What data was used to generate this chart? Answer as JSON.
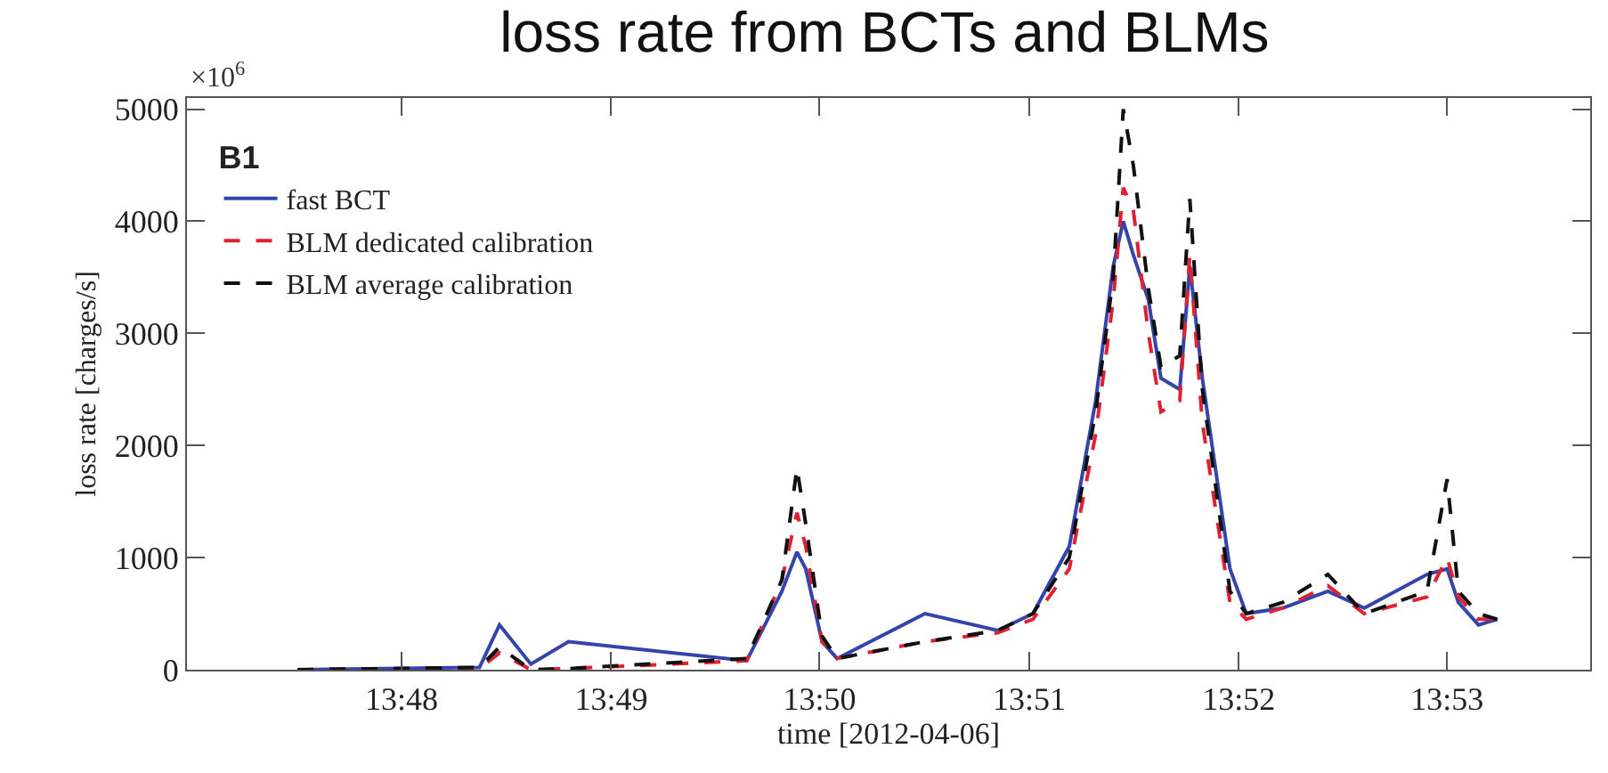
{
  "chart_data": {
    "type": "line",
    "title": "loss rate from BCTs and BLMs",
    "xlabel": "time [2012-04-06]",
    "ylabel": "loss rate [charges/s]",
    "legend_title": "B1",
    "annotations": [
      "×10$^{6}$"
    ],
    "x": [
      13.7917,
      13.8062,
      13.8078,
      13.8103,
      13.8133,
      13.8275,
      13.8303,
      13.8315,
      13.8322,
      13.8335,
      13.8347,
      13.8417,
      13.8475,
      13.8503,
      13.8532,
      13.8553,
      13.8567,
      13.8575,
      13.8583,
      13.8595,
      13.8605,
      13.862,
      13.8628,
      13.8638,
      13.866,
      13.8673,
      13.8702,
      13.8738,
      13.8767,
      13.8817,
      13.8833,
      13.8842,
      13.8858,
      13.8873
    ],
    "series": [
      {
        "name": "fast BCT",
        "color": "#3344aa",
        "line_style": "solid",
        "values": [
          0,
          20,
          400,
          50,
          250,
          80,
          700,
          1050,
          900,
          250,
          100,
          500,
          350,
          500,
          1100,
          2400,
          3600,
          4000,
          3700,
          3300,
          2600,
          2500,
          3600,
          2600,
          900,
          500,
          550,
          700,
          550,
          850,
          900,
          600,
          400,
          450
        ]
      },
      {
        "name": "BLM dedicated calibration",
        "color": "#dd2233",
        "line_style": "dashed",
        "values": [
          0,
          10,
          150,
          0,
          10,
          80,
          800,
          1400,
          1100,
          250,
          100,
          250,
          330,
          450,
          900,
          2100,
          3300,
          4300,
          4100,
          3000,
          2300,
          2400,
          3700,
          2200,
          600,
          450,
          550,
          750,
          500,
          650,
          1000,
          650,
          450,
          450
        ]
      },
      {
        "name": "BLM average calibration",
        "color": "#111111",
        "line_style": "dashed",
        "values": [
          0,
          20,
          200,
          0,
          10,
          100,
          800,
          1800,
          1300,
          300,
          100,
          250,
          350,
          500,
          1000,
          2300,
          3500,
          5000,
          4500,
          3400,
          2700,
          2800,
          4200,
          2500,
          700,
          500,
          600,
          850,
          500,
          700,
          1700,
          700,
          500,
          450
        ]
      }
    ],
    "xlim": [
      13.7829,
      13.8947
    ],
    "xticks": [
      {
        "value": 13.8,
        "label": "13:48"
      },
      {
        "value": 13.8167,
        "label": "13:49"
      },
      {
        "value": 13.8333,
        "label": "13:50"
      },
      {
        "value": 13.85,
        "label": "13:51"
      },
      {
        "value": 13.8667,
        "label": "13:52"
      },
      {
        "value": 13.8833,
        "label": "13:53"
      }
    ],
    "ylim": [
      0,
      5100
    ],
    "yticks": [
      0,
      1000,
      2000,
      3000,
      4000,
      5000
    ],
    "legend": "top left"
  }
}
